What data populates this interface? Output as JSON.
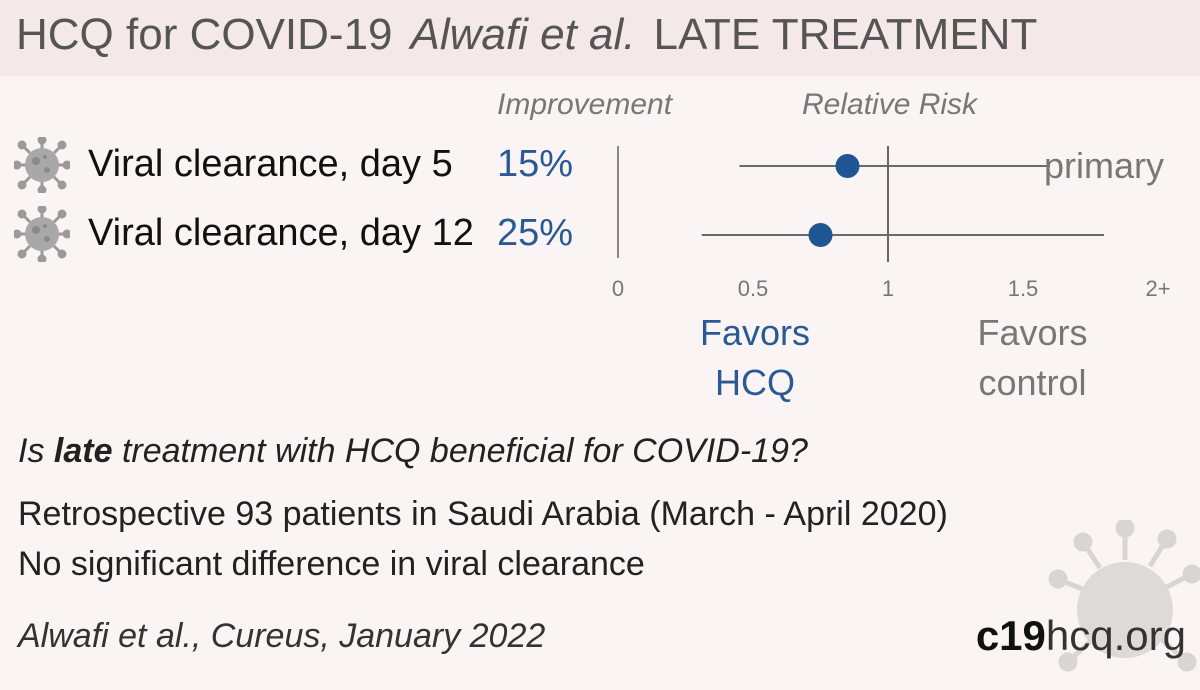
{
  "header": {
    "title": "HCQ for COVID-19",
    "author": "Alwafi et al.",
    "stage": "LATE TREATMENT"
  },
  "columns": {
    "improvement": "Improvement",
    "relative_risk": "Relative Risk"
  },
  "rows": [
    {
      "label": "Viral clearance, day 5",
      "improvement": "15%",
      "icon": "virus-icon"
    },
    {
      "label": "Viral clearance, day 12",
      "improvement": "25%",
      "icon": "virus-icon"
    }
  ],
  "favors": {
    "left": "Favors\nHCQ",
    "right": "Favors\ncontrol"
  },
  "summary": {
    "q_prefix": "Is ",
    "q_bold": "late",
    "q_suffix": " treatment with HCQ beneficial for COVID-19?",
    "line1": "Retrospective 93 patients in Saudi Arabia (March - April 2020)",
    "line2": "No significant difference in viral clearance"
  },
  "citation": "Alwafi et al., Cureus, January 2022",
  "brand": {
    "part1": "c19",
    "part2": "hcq.org"
  },
  "colors": {
    "accent": "#2a5a96",
    "marker": "#1f5592",
    "muted": "#777777",
    "line": "#6a6a6a",
    "header_bg": "#f5e8e8",
    "page_bg": "#fbf4f4"
  },
  "chart_data": {
    "type": "scatter",
    "subtype": "forest-plot",
    "xlim": [
      0,
      2
    ],
    "ticks": [
      {
        "value": 0,
        "label": "0"
      },
      {
        "value": 0.5,
        "label": "0.5"
      },
      {
        "value": 1,
        "label": "1"
      },
      {
        "value": 1.5,
        "label": "1.5"
      },
      {
        "value": 2,
        "label": "2+"
      }
    ],
    "reference_line": 1,
    "series": [
      {
        "outcome": "Viral clearance, day 5",
        "rr": 0.85,
        "ci": [
          0.45,
          1.6
        ],
        "annotation": "primary"
      },
      {
        "outcome": "Viral clearance, day 12",
        "rr": 0.75,
        "ci": [
          0.31,
          1.8
        ],
        "annotation": ""
      }
    ]
  }
}
